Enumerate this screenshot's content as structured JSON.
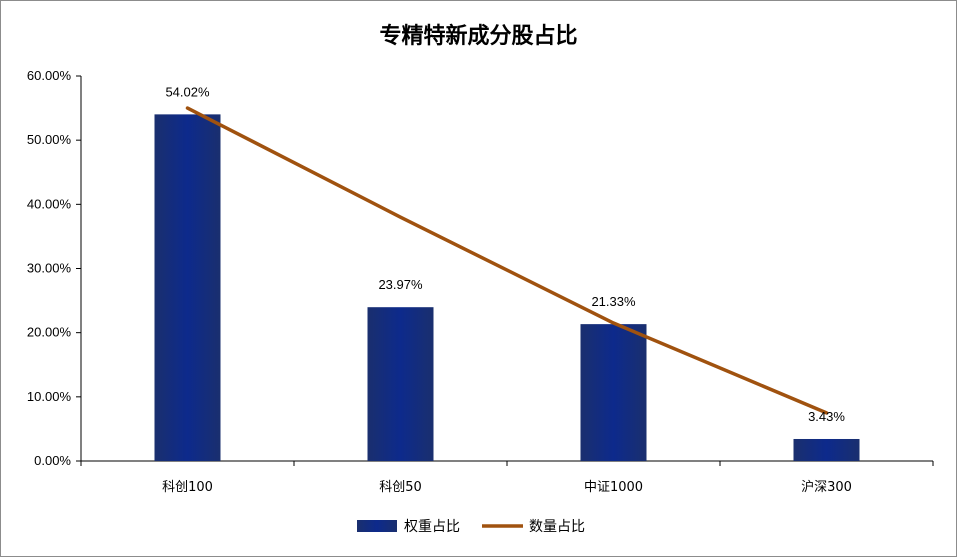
{
  "chart_data": {
    "type": "bar",
    "title": "专精特新成分股占比",
    "categories": [
      "科创100",
      "科创50",
      "中证1000",
      "沪深300"
    ],
    "series": [
      {
        "name": "权重占比",
        "kind": "bar",
        "values": [
          54.02,
          23.97,
          21.33,
          3.43
        ],
        "labels": [
          "54.02%",
          "23.97%",
          "21.33%",
          "3.43%"
        ],
        "color": "#0d2a7a"
      },
      {
        "name": "数量占比",
        "kind": "line",
        "values": [
          55.0,
          38.0,
          21.5,
          7.5
        ],
        "color": "#a0520f"
      }
    ],
    "ylim": [
      0,
      60
    ],
    "yticks": [
      "0.00%",
      "10.00%",
      "20.00%",
      "30.00%",
      "40.00%",
      "50.00%",
      "60.00%"
    ],
    "legend": "bottom",
    "grid": false
  }
}
